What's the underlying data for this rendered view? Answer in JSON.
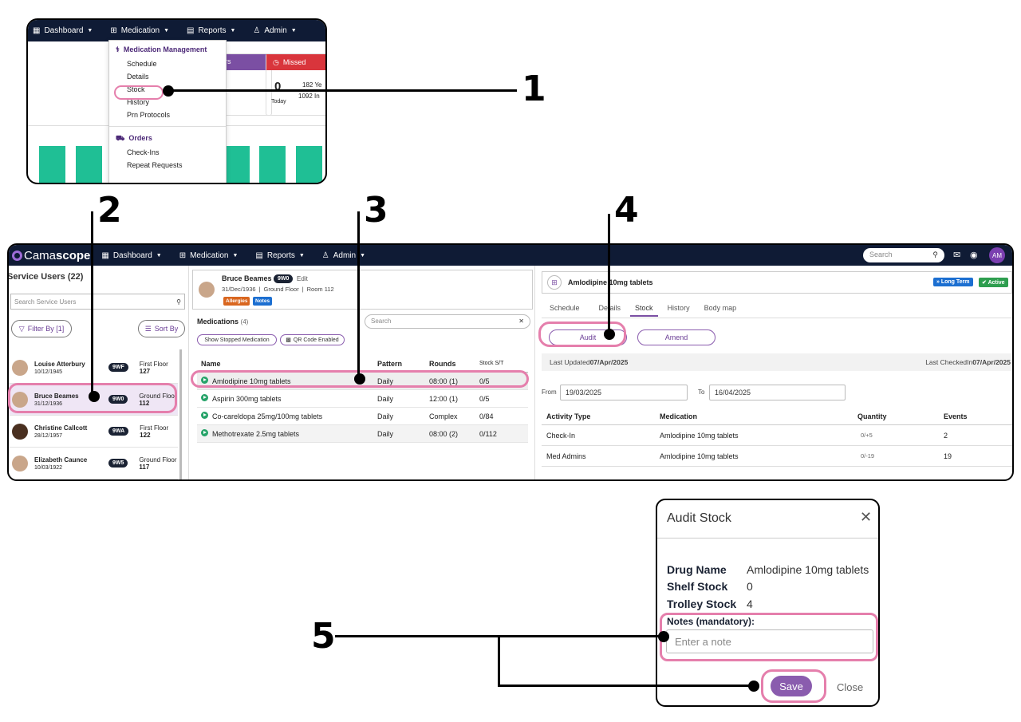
{
  "callouts": [
    "1",
    "2",
    "3",
    "4",
    "5"
  ],
  "top_panel": {
    "nav": [
      "Dashboard",
      "Medication",
      "Reports",
      "Admin"
    ],
    "menu_header": "Medication Management",
    "menu_items": [
      "Schedule",
      "Details",
      "Stock",
      "History",
      "Prn Protocols"
    ],
    "orders_header": "Orders",
    "orders_items": [
      "Check-Ins",
      "Repeat Requests"
    ],
    "card_partial": "rs",
    "missed_label": "Missed",
    "missed_count": "0",
    "missed_today": "Today",
    "missed_stats": [
      "182",
      "Ye",
      "1092",
      "In"
    ],
    "partial_t": "t"
  },
  "main": {
    "brand_prefix": "Cama",
    "brand_suffix": "scope",
    "nav": [
      "Dashboard",
      "Medication",
      "Reports",
      "Admin"
    ],
    "search_placeholder": "Search",
    "avatar_initials": "AM",
    "service_users_title": "Service Users (22)",
    "service_users_search": "Search Service Users",
    "filter_label": "Filter By [1]",
    "sort_label": "Sort By",
    "users": [
      {
        "name": "Louise Atterbury",
        "dob": "10/12/1945",
        "code": "9WF",
        "floor": "First Floor",
        "room": "127"
      },
      {
        "name": "Bruce Beames",
        "dob": "31/12/1936",
        "code": "9W0",
        "floor": "Ground Floor",
        "room": "112"
      },
      {
        "name": "Christine Callcott",
        "dob": "28/12/1957",
        "code": "9WA",
        "floor": "First Floor",
        "room": "122"
      },
      {
        "name": "Elizabeth Caunce",
        "dob": "10/03/1922",
        "code": "9W5",
        "floor": "Ground Floor",
        "room": "117"
      }
    ],
    "patient": {
      "name": "Bruce Beames",
      "code": "9W0",
      "edit": "Edit",
      "dob": "31/Dec/1936",
      "sep": "|",
      "location": "Ground Floor",
      "room": "Room 112",
      "tags": [
        "Allergies",
        "Notes"
      ]
    },
    "medications_title": "Medications",
    "medications_count": "(4)",
    "med_search_placeholder": "Search",
    "show_stopped": "Show Stopped Medication",
    "qr_enabled": "QR Code Enabled",
    "med_headers": [
      "Name",
      "Pattern",
      "Rounds",
      "Stock S/T"
    ],
    "meds": [
      {
        "name": "Amlodipine 10mg tablets",
        "pattern": "Daily",
        "rounds": "08:00 (1)",
        "stock": "0/5"
      },
      {
        "name": "Aspirin 300mg tablets",
        "pattern": "Daily",
        "rounds": "12:00 (1)",
        "stock": "0/5"
      },
      {
        "name": "Co-careldopa 25mg/100mg tablets",
        "pattern": "Daily",
        "rounds": "Complex",
        "stock": "0/84"
      },
      {
        "name": "Methotrexate 2.5mg tablets",
        "pattern": "Daily",
        "rounds": "08:00 (2)",
        "stock": "0/112"
      }
    ],
    "drug_title": "Amlodipine 10mg tablets",
    "badge_long_term": "Long Term",
    "badge_active": "Active",
    "tabs": [
      "Schedule",
      "Details",
      "Stock",
      "History",
      "Body map"
    ],
    "audit_btn": "Audit",
    "amend_btn": "Amend",
    "last_updated_label": "Last Updated",
    "last_updated_value": "07/Apr/2025",
    "last_checkedin_label": "Last CheckedIn",
    "last_checkedin_value": "07/Apr/2025",
    "from_label": "From",
    "from_value": "19/03/2025",
    "to_label": "To",
    "to_value": "16/04/2025",
    "activity_headers": [
      "Activity Type",
      "Medication",
      "Quantity",
      "Events"
    ],
    "activities": [
      {
        "type": "Check-In",
        "med": "Amlodipine 10mg tablets",
        "qty": "0/+5",
        "events": "2"
      },
      {
        "type": "Med Admins",
        "med": "Amlodipine 10mg tablets",
        "qty": "0/-19",
        "events": "19"
      }
    ]
  },
  "dialog": {
    "title": "Audit Stock",
    "drug_label": "Drug Name",
    "drug_value": "Amlodipine 10mg tablets",
    "shelf_label": "Shelf Stock",
    "shelf_value": "0",
    "trolley_label": "Trolley Stock",
    "trolley_value": "4",
    "notes_label": "Notes (mandatory):",
    "notes_placeholder": "Enter a note",
    "save_label": "Save",
    "close_label": "Close"
  },
  "colors": {
    "nav": "#0f1b35",
    "accent": "#8a5cae",
    "pink": "#e57fac",
    "green": "#1fbf95",
    "missed": "#d9353c"
  }
}
